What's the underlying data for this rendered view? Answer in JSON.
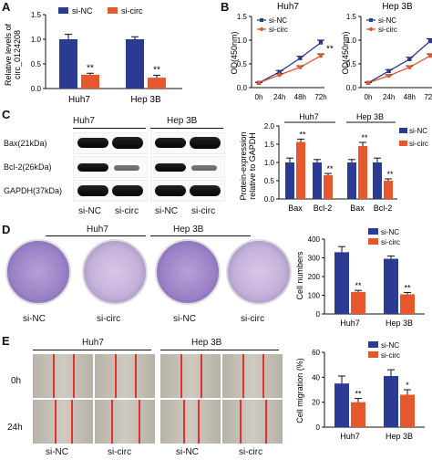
{
  "panels": {
    "A": "A",
    "B": "B",
    "C": "C",
    "D": "D",
    "E": "E"
  },
  "legend": {
    "nc": "si-NC",
    "circ": "si-circ"
  },
  "colors": {
    "nc": "#2b3a93",
    "circ": "#e5582d"
  },
  "panelA": {
    "ylabel": "Relative levels of circ_0124208",
    "ylabel_line1": "Relative levels of",
    "ylabel_line2": "circ_0124208",
    "yticks": [
      "0.0",
      "0.5",
      "1.0",
      "1.5"
    ],
    "sig": [
      "**",
      "**"
    ]
  },
  "panelB": {
    "ylabel": "OD(450nm)",
    "yticks": [
      "0.0",
      "0.5",
      "1.0",
      "1.5"
    ],
    "sig": "**"
  },
  "panelC": {
    "cell_labels": [
      "Huh7",
      "Hep 3B"
    ],
    "rows": [
      "Bax(21kDa)",
      "Bcl-2(26kDa)",
      "GAPDH(37kDa)"
    ],
    "groups": [
      "si-NC",
      "si-circ",
      "si-NC",
      "si-circ"
    ],
    "ylabel": "Protein-expression relative to GAPDH",
    "ylabel_line1": "Protein-expression",
    "ylabel_line2": "relative to GAPDH",
    "yticks": [
      "0.0",
      "0.5",
      "1.0",
      "1.5",
      "2.0"
    ],
    "legend_nc": "si-NC",
    "legend_circ": "si-circ",
    "sig": [
      "**",
      "**",
      "**",
      "**"
    ]
  },
  "panelD": {
    "cell_labels": [
      "Huh7",
      "Hep 3B"
    ],
    "groups": [
      "si-NC",
      "si-circ",
      "si-NC",
      "si-circ"
    ],
    "ylabel": "Cell numbers",
    "yticks": [
      "0",
      "100",
      "200",
      "300",
      "400"
    ],
    "sig": [
      "**",
      "**"
    ]
  },
  "panelE": {
    "cell_labels": [
      "Huh7",
      "Hep 3B"
    ],
    "time_labels": [
      "0h",
      "24h"
    ],
    "groups": [
      "si-NC",
      "si-circ",
      "si-NC",
      "si-circ"
    ],
    "ylabel": "Cell migration (%)",
    "yticks": [
      "0",
      "20",
      "40",
      "60"
    ],
    "sig": [
      "**",
      "*"
    ]
  },
  "chart_data": [
    {
      "type": "bar",
      "id": "A",
      "categories": [
        "Huh7",
        "Hep 3B"
      ],
      "series": [
        {
          "name": "si-NC",
          "values": [
            1.0,
            1.0
          ],
          "errors": [
            0.1,
            0.05
          ]
        },
        {
          "name": "si-circ",
          "values": [
            0.28,
            0.22
          ],
          "errors": [
            0.03,
            0.05
          ]
        }
      ],
      "ylabel": "Relative levels of circ_0124208",
      "ylim": [
        0,
        1.5
      ],
      "legend": "top-right"
    },
    {
      "type": "line",
      "id": "B-Huh7",
      "title": "Huh7",
      "x": [
        "0h",
        "24h",
        "48h",
        "72h"
      ],
      "series": [
        {
          "name": "si-NC",
          "values": [
            0.1,
            0.33,
            0.62,
            0.95
          ],
          "errors": [
            0.01,
            0.03,
            0.04,
            0.05
          ]
        },
        {
          "name": "si-circ",
          "values": [
            0.1,
            0.27,
            0.43,
            0.67
          ],
          "errors": [
            0.01,
            0.02,
            0.03,
            0.04
          ]
        }
      ],
      "ylabel": "OD(450nm)",
      "ylim": [
        0,
        1.5
      ],
      "legend": "top-left"
    },
    {
      "type": "line",
      "id": "B-Hep3B",
      "title": "Hep 3B",
      "x": [
        "0h",
        "24h",
        "48h",
        "72h"
      ],
      "series": [
        {
          "name": "si-NC",
          "values": [
            0.1,
            0.35,
            0.6,
            0.98
          ],
          "errors": [
            0.01,
            0.03,
            0.04,
            0.05
          ]
        },
        {
          "name": "si-circ",
          "values": [
            0.1,
            0.25,
            0.43,
            0.67
          ],
          "errors": [
            0.01,
            0.02,
            0.03,
            0.04
          ]
        }
      ],
      "ylabel": "OD(450nm)",
      "ylim": [
        0,
        1.5
      ],
      "legend": "top-left"
    },
    {
      "type": "bar",
      "id": "C",
      "group_labels": [
        "Huh7",
        "Hep 3B"
      ],
      "categories": [
        "Bax",
        "Bcl-2",
        "Bax",
        "Bcl-2"
      ],
      "series": [
        {
          "name": "si-NC",
          "values": [
            1.0,
            1.0,
            1.0,
            1.0
          ],
          "errors": [
            0.12,
            0.08,
            0.08,
            0.12
          ]
        },
        {
          "name": "si-circ",
          "values": [
            1.56,
            0.65,
            1.45,
            0.5
          ],
          "errors": [
            0.08,
            0.05,
            0.1,
            0.05
          ]
        }
      ],
      "ylabel": "Protein-expression relative to GAPDH",
      "ylim": [
        0,
        2.0
      ],
      "legend": "top-right"
    },
    {
      "type": "bar",
      "id": "D",
      "categories": [
        "Huh7",
        "Hep 3B"
      ],
      "series": [
        {
          "name": "si-NC",
          "values": [
            330,
            295
          ],
          "errors": [
            30,
            15
          ]
        },
        {
          "name": "si-circ",
          "values": [
            118,
            105
          ],
          "errors": [
            8,
            10
          ]
        }
      ],
      "ylabel": "Cell numbers",
      "ylim": [
        0,
        400
      ],
      "legend": "top-right"
    },
    {
      "type": "bar",
      "id": "E",
      "categories": [
        "Huh7",
        "Hep 3B"
      ],
      "series": [
        {
          "name": "si-NC",
          "values": [
            35,
            41
          ],
          "errors": [
            6,
            5
          ]
        },
        {
          "name": "si-circ",
          "values": [
            20,
            26
          ],
          "errors": [
            3,
            4
          ]
        }
      ],
      "ylabel": "Cell migration (%)",
      "ylim": [
        0,
        60
      ],
      "legend": "top-right"
    }
  ]
}
